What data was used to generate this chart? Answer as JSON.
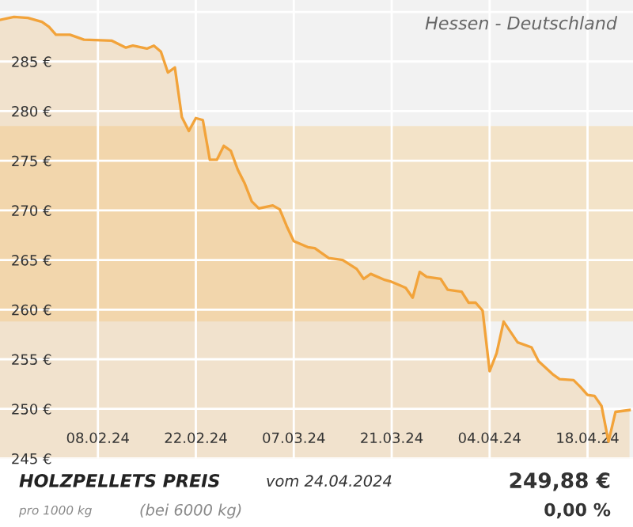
{
  "chart_data": {
    "type": "area",
    "title": "HOLZPELLETS PREIS",
    "subtitle": "Hessen - Deutschland",
    "annotations": [
      "vom 24.04.2024",
      "pro 1000 kg",
      "(bei 6000 kg)",
      "249,88 €",
      "0,00 %"
    ],
    "x": [
      "2024-01-25",
      "2024-01-27",
      "2024-01-29",
      "2024-01-31",
      "2024-02-01",
      "2024-02-02",
      "2024-02-04",
      "2024-02-06",
      "2024-02-10",
      "2024-02-12",
      "2024-02-13",
      "2024-02-15",
      "2024-02-16",
      "2024-02-17",
      "2024-02-18",
      "2024-02-19",
      "2024-02-20",
      "2024-02-21",
      "2024-02-22",
      "2024-02-23",
      "2024-02-24",
      "2024-02-25",
      "2024-02-26",
      "2024-02-27",
      "2024-02-28",
      "2024-02-29",
      "2024-03-01",
      "2024-03-02",
      "2024-03-04",
      "2024-03-05",
      "2024-03-06",
      "2024-03-07",
      "2024-03-09",
      "2024-03-10",
      "2024-03-12",
      "2024-03-14",
      "2024-03-16",
      "2024-03-17",
      "2024-03-18",
      "2024-03-20",
      "2024-03-21",
      "2024-03-23",
      "2024-03-24",
      "2024-03-25",
      "2024-03-26",
      "2024-03-28",
      "2024-03-29",
      "2024-03-31",
      "2024-04-01",
      "2024-04-02",
      "2024-04-03",
      "2024-04-04",
      "2024-04-05",
      "2024-04-06",
      "2024-04-08",
      "2024-04-10",
      "2024-04-11",
      "2024-04-13",
      "2024-04-14",
      "2024-04-16",
      "2024-04-17",
      "2024-04-18",
      "2024-04-19",
      "2024-04-20",
      "2024-04-21",
      "2024-04-22",
      "2024-04-24"
    ],
    "series": [
      {
        "color": "#f2a33a",
        "values": [
          289.2,
          289.5,
          289.4,
          289.0,
          288.5,
          287.7,
          287.7,
          287.2,
          287.1,
          286.4,
          286.6,
          286.3,
          286.6,
          286.0,
          283.9,
          284.4,
          279.4,
          278.0,
          279.3,
          279.1,
          275.1,
          275.1,
          276.5,
          276.0,
          274.1,
          272.7,
          270.9,
          270.2,
          270.5,
          270.1,
          268.4,
          266.9,
          266.3,
          266.2,
          265.2,
          265.0,
          264.1,
          263.1,
          263.6,
          263.0,
          262.8,
          262.2,
          261.2,
          263.8,
          263.3,
          263.1,
          262.0,
          261.8,
          260.7,
          260.7,
          259.9,
          253.8,
          255.6,
          258.8,
          256.7,
          256.2,
          254.8,
          253.5,
          253.0,
          252.9,
          252.2,
          251.4,
          251.3,
          250.3,
          246.7,
          249.7,
          249.88
        ]
      }
    ],
    "xlim": [
      "2024-01-25",
      "2024-04-24T12:00"
    ],
    "xticks": [
      {
        "value": "2024-02-08",
        "label": "08.02.24"
      },
      {
        "value": "2024-02-22",
        "label": "22.02.24"
      },
      {
        "value": "2024-03-07",
        "label": "07.03.24"
      },
      {
        "value": "2024-03-21",
        "label": "21.03.24"
      },
      {
        "value": "2024-04-04",
        "label": "04.04.24"
      },
      {
        "value": "2024-04-18",
        "label": "18.04.24"
      }
    ],
    "ylim": [
      245,
      291.2
    ],
    "yticks": [
      {
        "value": 245,
        "label": "245 €"
      },
      {
        "value": 250,
        "label": "250 €"
      },
      {
        "value": 255,
        "label": "255 €"
      },
      {
        "value": 260,
        "label": "260 €"
      },
      {
        "value": 265,
        "label": "265 €"
      },
      {
        "value": 270,
        "label": "270 €"
      },
      {
        "value": 275,
        "label": "275 €"
      },
      {
        "value": 280,
        "label": "280 €"
      },
      {
        "value": 285,
        "label": "285 €"
      },
      {
        "value": 290,
        "label": null
      }
    ],
    "bands": [
      {
        "axis": "y",
        "from": 258.8,
        "to": 278.5,
        "color": "#f3e3c8"
      }
    ],
    "grid": true,
    "legend": false,
    "marker": "none",
    "line_style": "solid"
  }
}
